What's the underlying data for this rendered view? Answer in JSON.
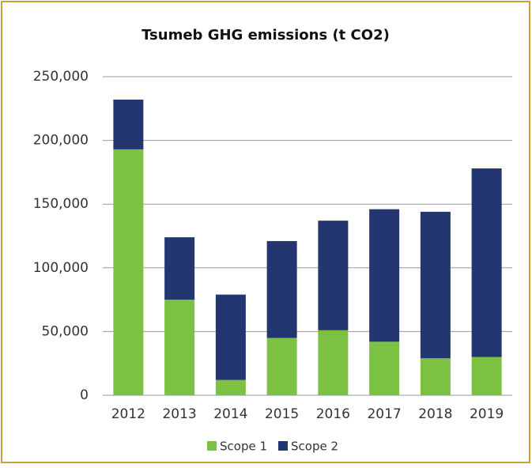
{
  "chart_data": {
    "type": "stacked_bar",
    "title": "Tsumeb GHG emissions (t CO2)",
    "categories": [
      "2012",
      "2013",
      "2014",
      "2015",
      "2016",
      "2017",
      "2018",
      "2019"
    ],
    "series": [
      {
        "name": "Scope 1",
        "color": "#7dc142",
        "values": [
          193000,
          75000,
          12000,
          45000,
          51000,
          42000,
          29000,
          30000
        ]
      },
      {
        "name": "Scope 2",
        "color": "#233670",
        "values": [
          39000,
          49000,
          67000,
          76000,
          86000,
          104000,
          115000,
          148000
        ]
      }
    ],
    "ylim": [
      0,
      250000
    ],
    "yticks": [
      0,
      {
        "value": 50000,
        "label": "50,000"
      },
      {
        "value": 100000,
        "label": "100,000"
      },
      {
        "value": 150000,
        "label": "150,000"
      },
      {
        "value": 200000,
        "label": "200,000"
      },
      {
        "value": 250000,
        "label": "250,000"
      }
    ],
    "grid": true,
    "legend": "bottom"
  }
}
